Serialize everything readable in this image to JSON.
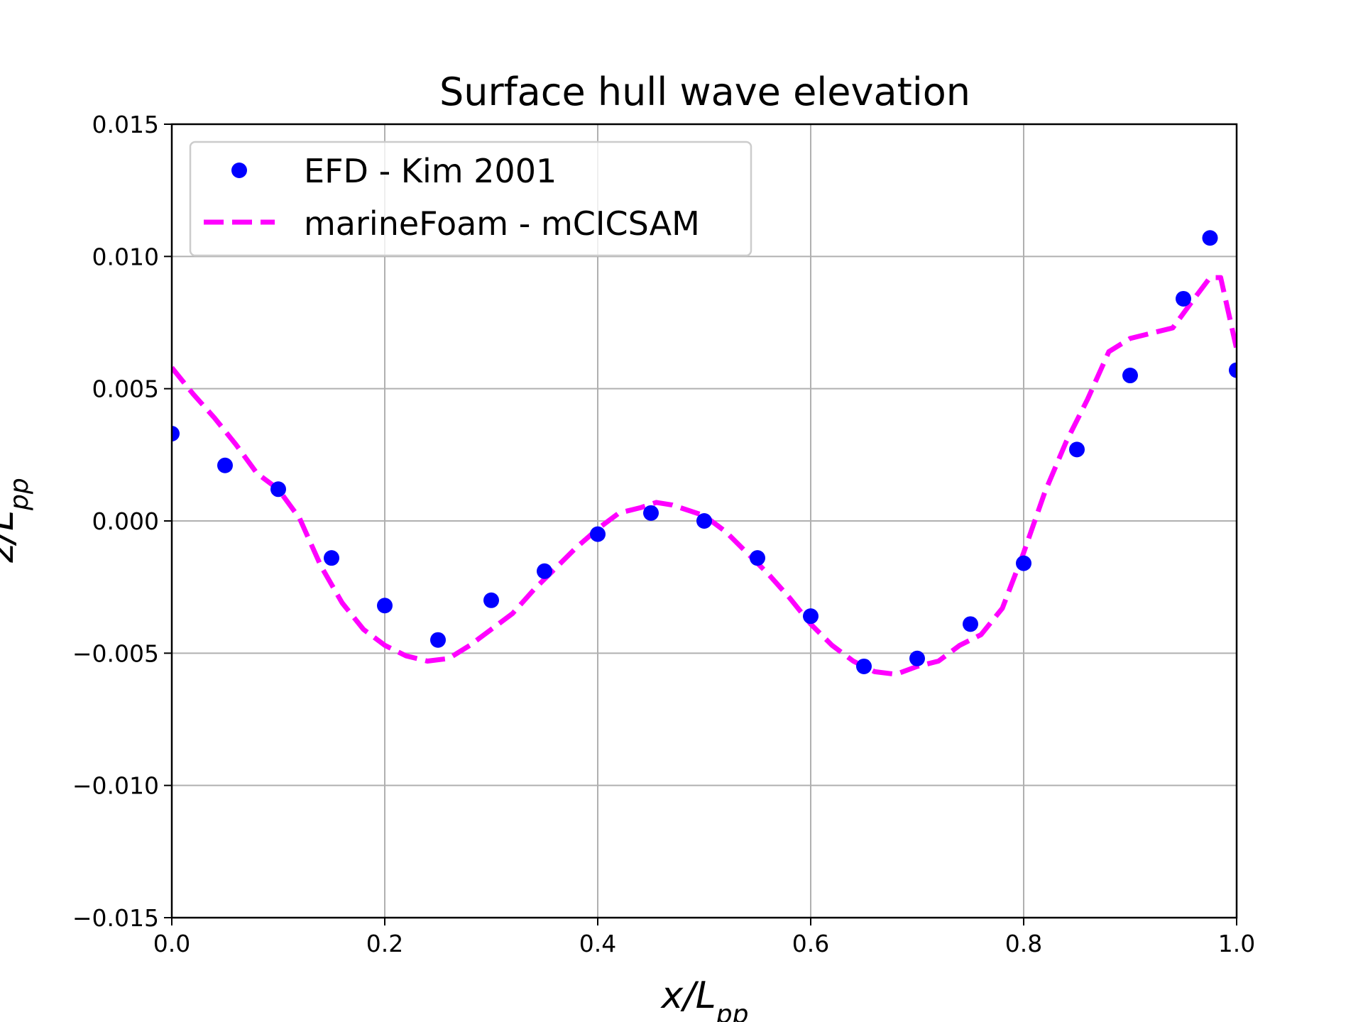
{
  "chart_data": {
    "type": "scatter",
    "title": "Surface hull wave elevation",
    "xlabel": {
      "base": "x/L",
      "sub": "pp"
    },
    "ylabel": {
      "base": "z/L",
      "sub": "pp"
    },
    "xlim": [
      0.0,
      1.0
    ],
    "ylim": [
      -0.015,
      0.015
    ],
    "xticks": [
      0.0,
      0.2,
      0.4,
      0.6,
      0.8,
      1.0
    ],
    "xtick_labels": [
      "0.0",
      "0.2",
      "0.4",
      "0.6",
      "0.8",
      "1.0"
    ],
    "yticks": [
      -0.015,
      -0.01,
      -0.005,
      0.0,
      0.005,
      0.01,
      0.015
    ],
    "ytick_labels": [
      "−0.015",
      "−0.010",
      "−0.005",
      "0.000",
      "0.005",
      "0.010",
      "0.015"
    ],
    "grid": true,
    "legend_position": "top-left",
    "series": [
      {
        "name": "EFD - Kim 2001",
        "style": "markers",
        "color": "#0000ff",
        "points": [
          [
            0.0,
            0.0033
          ],
          [
            0.05,
            0.0021
          ],
          [
            0.1,
            0.0012
          ],
          [
            0.15,
            -0.0014
          ],
          [
            0.2,
            -0.0032
          ],
          [
            0.25,
            -0.0045
          ],
          [
            0.3,
            -0.003
          ],
          [
            0.35,
            -0.0019
          ],
          [
            0.4,
            -0.0005
          ],
          [
            0.45,
            0.0003
          ],
          [
            0.5,
            0.0
          ],
          [
            0.55,
            -0.0014
          ],
          [
            0.6,
            -0.0036
          ],
          [
            0.65,
            -0.0055
          ],
          [
            0.7,
            -0.0052
          ],
          [
            0.75,
            -0.0039
          ],
          [
            0.8,
            -0.0016
          ],
          [
            0.85,
            0.0027
          ],
          [
            0.9,
            0.0055
          ],
          [
            0.95,
            0.0084
          ],
          [
            0.975,
            0.0107
          ],
          [
            1.0,
            0.0057
          ]
        ]
      },
      {
        "name": "marineFoam - mCICSAM",
        "style": "dashed-line",
        "color": "#ff00ff",
        "points": [
          [
            0.0,
            0.0058
          ],
          [
            0.02,
            0.0048
          ],
          [
            0.04,
            0.0039
          ],
          [
            0.06,
            0.0029
          ],
          [
            0.08,
            0.0018
          ],
          [
            0.1,
            0.0012
          ],
          [
            0.12,
            0.0001
          ],
          [
            0.14,
            -0.0017
          ],
          [
            0.16,
            -0.0031
          ],
          [
            0.18,
            -0.0041
          ],
          [
            0.2,
            -0.0047
          ],
          [
            0.22,
            -0.0051
          ],
          [
            0.24,
            -0.0053
          ],
          [
            0.26,
            -0.0052
          ],
          [
            0.28,
            -0.0047
          ],
          [
            0.3,
            -0.0041
          ],
          [
            0.32,
            -0.0035
          ],
          [
            0.34,
            -0.0026
          ],
          [
            0.36,
            -0.0018
          ],
          [
            0.38,
            -0.001
          ],
          [
            0.4,
            -0.0003
          ],
          [
            0.42,
            0.0003
          ],
          [
            0.44,
            0.0005
          ],
          [
            0.455,
            0.0007
          ],
          [
            0.47,
            0.0006
          ],
          [
            0.5,
            0.0002
          ],
          [
            0.52,
            -0.0004
          ],
          [
            0.54,
            -0.0012
          ],
          [
            0.56,
            -0.002
          ],
          [
            0.58,
            -0.0029
          ],
          [
            0.6,
            -0.0039
          ],
          [
            0.62,
            -0.0047
          ],
          [
            0.64,
            -0.0053
          ],
          [
            0.66,
            -0.0057
          ],
          [
            0.68,
            -0.0058
          ],
          [
            0.7,
            -0.0055
          ],
          [
            0.72,
            -0.0053
          ],
          [
            0.74,
            -0.0047
          ],
          [
            0.76,
            -0.0043
          ],
          [
            0.78,
            -0.0033
          ],
          [
            0.8,
            -0.0012
          ],
          [
            0.82,
            0.0011
          ],
          [
            0.84,
            0.003
          ],
          [
            0.86,
            0.0046
          ],
          [
            0.88,
            0.0064
          ],
          [
            0.9,
            0.0069
          ],
          [
            0.92,
            0.0071
          ],
          [
            0.94,
            0.0073
          ],
          [
            0.96,
            0.0084
          ],
          [
            0.975,
            0.0092
          ],
          [
            0.985,
            0.0092
          ],
          [
            1.0,
            0.0065
          ]
        ]
      }
    ]
  }
}
